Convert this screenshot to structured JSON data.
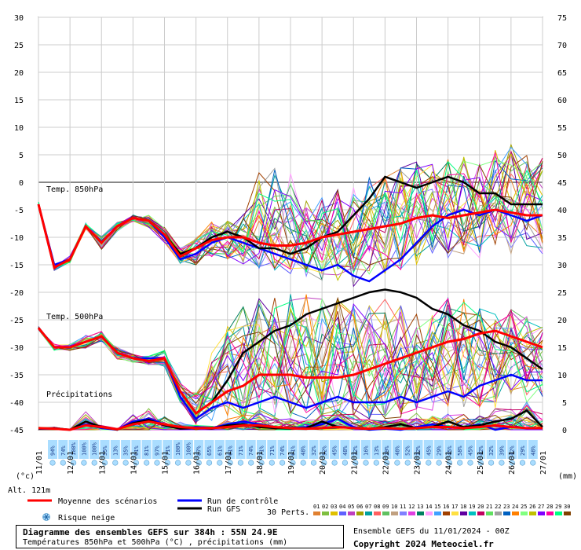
{
  "left_axis_values": [
    "30",
    "25",
    "20",
    "15",
    "10",
    "5",
    "0",
    "-5",
    "-10",
    "-15",
    "-20",
    "-25",
    "-30",
    "-35",
    "-40",
    "-45"
  ],
  "right_axis_values": [
    "75",
    "70",
    "65",
    "60",
    "55",
    "50",
    "45",
    "40",
    "35",
    "30",
    "25",
    "20",
    "15",
    "10",
    "5",
    "0"
  ],
  "date_labels": [
    "11/01",
    "12/01",
    "13/01",
    "14/01",
    "15/01",
    "16/01",
    "17/01",
    "18/01",
    "19/01",
    "20/01",
    "21/01",
    "22/01",
    "23/01",
    "24/01",
    "25/01",
    "26/01",
    "27/01"
  ],
  "unit_left": "(°c)",
  "unit_right": "(mm)",
  "altitude": "Alt. 121m",
  "panel_labels": {
    "t850": "Temp. 850hPa",
    "t500": "Temp. 500hPa",
    "precip": "Précipitations"
  },
  "legend": {
    "mean": "Moyenne des scénarios",
    "control": "Run de contrôle",
    "gfs": "Run GFS",
    "snow": "Risque neige",
    "perts": "30 Perts.",
    "pert_numbers": [
      "01",
      "02",
      "03",
      "04",
      "05",
      "06",
      "07",
      "08",
      "09",
      "10",
      "11",
      "12",
      "13",
      "14",
      "15",
      "16",
      "17",
      "18",
      "19",
      "20",
      "21",
      "22",
      "23",
      "24",
      "25",
      "26",
      "27",
      "28",
      "29",
      "30"
    ]
  },
  "snow_risk_labels": [
    "94%",
    "74%",
    "100%",
    "100%",
    "100%",
    "55%",
    "13%",
    "35%",
    "61%",
    "81%",
    "97%",
    "71%",
    "100%",
    "100%",
    "87%",
    "65%",
    "61%",
    "61%",
    "71%",
    "74%",
    "71%",
    "71%",
    "74%",
    "61%",
    "48%",
    "32%",
    "52%",
    "45%",
    "48%",
    "32%",
    "16%",
    "13%",
    "29%",
    "48%",
    "52%",
    "32%",
    "45%",
    "29%",
    "45%",
    "58%",
    "45%",
    "42%",
    "32%",
    "39%",
    "42%",
    "29%",
    "48%"
  ],
  "title_box": {
    "line1": "Diagramme des ensembles GEFS sur 384h : 55N 24.9E",
    "line2": "Températures 850hPa et 500hPa (°C) , précipitations (mm)"
  },
  "footer": {
    "run": "Ensemble GEFS du 11/01/2024 - 00Z",
    "copyright": "Copyright 2024 Meteociel.fr"
  },
  "colors": {
    "mean": "#ff0000",
    "control": "#0000ff",
    "gfs": "#000000",
    "snow": "#aaddff",
    "pert_palette": [
      "#e08030",
      "#7fbf3f",
      "#e0c000",
      "#6060ff",
      "#bf40bf",
      "#a0a000",
      "#00a0a0",
      "#ff6060",
      "#60c060",
      "#c0a080",
      "#8080ff",
      "#e040e0",
      "#008060",
      "#ffa0ff",
      "#40a0ff",
      "#a04000",
      "#ffe040",
      "#6000a0",
      "#00c0c0",
      "#c00060",
      "#60e060",
      "#a0a0a0",
      "#0060c0",
      "#ff8000",
      "#80ff80",
      "#c0c000",
      "#8000ff",
      "#ff00a0",
      "#00ff80",
      "#804000"
    ]
  },
  "chart_data": [
    {
      "type": "line",
      "name": "Temp. 850hPa",
      "x_unit": "day of January 2024",
      "x": [
        11,
        11.5,
        12,
        12.5,
        13,
        13.5,
        14,
        14.5,
        15,
        15.5,
        16,
        16.5,
        17,
        17.5,
        18,
        18.5,
        19,
        19.5,
        20,
        20.5,
        21,
        21.5,
        22,
        22.5,
        23,
        23.5,
        24,
        24.5,
        25,
        25.5,
        26,
        26.5,
        27
      ],
      "series": [
        {
          "name": "Moyenne des scénarios",
          "values": [
            -4,
            -15.5,
            -14,
            -8,
            -11,
            -8,
            -6.5,
            -7,
            -9.5,
            -13.5,
            -12,
            -10.5,
            -10,
            -10,
            -11,
            -11.5,
            -11.5,
            -11,
            -10,
            -9.5,
            -9,
            -8.5,
            -8,
            -7.5,
            -6.5,
            -6,
            -6.5,
            -6,
            -5.5,
            -5,
            -5.5,
            -6,
            -6
          ]
        },
        {
          "name": "Run de contrôle",
          "values": [
            -4,
            -15,
            -14,
            -8,
            -11,
            -8,
            -6.5,
            -7,
            -10,
            -14,
            -13,
            -11,
            -10,
            -11,
            -12,
            -13,
            -14,
            -15,
            -16,
            -15,
            -17,
            -18,
            -16,
            -14,
            -11,
            -8,
            -6,
            -5,
            -6,
            -5,
            -6,
            -7,
            -6
          ]
        },
        {
          "name": "Run GFS",
          "values": [
            -4,
            -15.5,
            -14,
            -8,
            -11,
            -8,
            -6.5,
            -7,
            -9.5,
            -13,
            -12,
            -10,
            -9,
            -10,
            -12,
            -12,
            -13,
            -12,
            -10,
            -9,
            -6,
            -3,
            1,
            0,
            -1,
            0,
            1,
            0,
            -2,
            -2,
            -4,
            -4,
            -4
          ]
        }
      ],
      "envelope": {
        "min": [
          -4.5,
          -16,
          -15,
          -9,
          -13,
          -9,
          -7.5,
          -9,
          -12,
          -16,
          -15,
          -14,
          -14,
          -15,
          -16,
          -16,
          -17,
          -18,
          -18,
          -18,
          -19,
          -17,
          -17,
          -16,
          -15,
          -14,
          -14,
          -13,
          -14,
          -12,
          -13,
          -12,
          -13
        ],
        "max": [
          -3,
          -14,
          -13,
          -7,
          -9,
          -6,
          -5.5,
          -5,
          -7,
          -11,
          -10,
          -7,
          -7,
          -5,
          2,
          3,
          2,
          -3,
          -2,
          -1,
          0,
          1,
          2,
          3,
          4,
          4,
          5,
          5,
          6,
          6,
          7,
          5,
          5
        ]
      },
      "ylim": [
        -45,
        30
      ]
    },
    {
      "type": "line",
      "name": "Temp. 500hPa",
      "x_unit": "day of January 2024",
      "x": [
        11,
        11.5,
        12,
        12.5,
        13,
        13.5,
        14,
        14.5,
        15,
        15.5,
        16,
        16.5,
        17,
        17.5,
        18,
        18.5,
        19,
        19.5,
        20,
        20.5,
        21,
        21.5,
        22,
        22.5,
        23,
        23.5,
        24,
        24.5,
        25,
        25.5,
        26,
        26.5,
        27
      ],
      "series": [
        {
          "name": "Moyenne des scénarios",
          "values": [
            -26.5,
            -30,
            -30,
            -29,
            -28,
            -31,
            -32,
            -32.5,
            -32,
            -38,
            -42,
            -40,
            -38,
            -37,
            -35,
            -35,
            -35,
            -35.5,
            -35.5,
            -35.5,
            -35,
            -34,
            -33,
            -32,
            -31,
            -30,
            -29,
            -28.5,
            -27.5,
            -27,
            -28,
            -29,
            -30
          ]
        },
        {
          "name": "Run de contrôle",
          "values": [
            -26.5,
            -30,
            -30,
            -29,
            -28,
            -31,
            -32,
            -32,
            -32,
            -39,
            -43,
            -41,
            -40,
            -41,
            -40,
            -39,
            -40,
            -41,
            -40,
            -39,
            -40,
            -40,
            -40,
            -39,
            -40,
            -39,
            -38,
            -39,
            -37,
            -36,
            -35,
            -36,
            -36
          ]
        },
        {
          "name": "Run GFS",
          "values": [
            -26.5,
            -30,
            -30,
            -29,
            -28,
            -31,
            -32,
            -32.5,
            -32,
            -38,
            -42,
            -40,
            -36,
            -31,
            -29,
            -27,
            -26,
            -24,
            -23,
            -22,
            -21,
            -20,
            -19.5,
            -20,
            -21,
            -23,
            -24,
            -26,
            -27,
            -29,
            -30,
            -32,
            -34
          ]
        }
      ],
      "envelope": {
        "min": [
          -27,
          -31,
          -31,
          -31,
          -30,
          -33,
          -33.5,
          -34,
          -35,
          -41,
          -44,
          -44,
          -43,
          -44,
          -43,
          -43,
          -43,
          -43,
          -43,
          -43,
          -43,
          -43,
          -43,
          -43,
          -42,
          -42,
          -42,
          -42,
          -41,
          -41,
          -40,
          -40,
          -39
        ],
        "max": [
          -26,
          -29,
          -29,
          -27,
          -27,
          -29,
          -31,
          -31,
          -30,
          -34,
          -38,
          -30,
          -26,
          -22,
          -21,
          -21,
          -20,
          -20,
          -21,
          -21,
          -21,
          -21,
          -21,
          -22,
          -23,
          -23,
          -21,
          -21,
          -22,
          -22,
          -23,
          -24,
          -26
        ]
      },
      "ylim": [
        -45,
        30
      ]
    },
    {
      "type": "line",
      "name": "Précipitations",
      "y_unit": "mm",
      "x": [
        11,
        11.5,
        12,
        12.5,
        13,
        13.5,
        14,
        14.5,
        15,
        15.5,
        16,
        16.5,
        17,
        17.5,
        18,
        18.5,
        19,
        19.5,
        20,
        20.5,
        21,
        21.5,
        22,
        22.5,
        23,
        23.5,
        24,
        24.5,
        25,
        25.5,
        26,
        26.5,
        27
      ],
      "series": [
        {
          "name": "Moyenne des scénarios",
          "values": [
            0.3,
            0.2,
            0,
            0.8,
            0.5,
            0.1,
            1,
            1.5,
            1,
            0.5,
            0.3,
            0.3,
            0.5,
            0.8,
            0.8,
            0.5,
            0.3,
            0.2,
            0.3,
            0.5,
            0.3,
            0.2,
            0.3,
            0.2,
            0.3,
            0.5,
            0.5,
            0.3,
            0.5,
            0.8,
            0.5,
            0.3,
            0.3
          ]
        },
        {
          "name": "Run de contrôle",
          "values": [
            0.2,
            0.2,
            0,
            1,
            0.3,
            0,
            1.5,
            2,
            1,
            0.3,
            0.5,
            0.3,
            1,
            1.5,
            1,
            0.5,
            0.3,
            0.5,
            1,
            2,
            0.5,
            0,
            0.2,
            0,
            0.5,
            1,
            0.5,
            0.3,
            1,
            0,
            0.5,
            0.3,
            0.3
          ]
        },
        {
          "name": "Run GFS",
          "values": [
            0.2,
            0.3,
            0,
            1.5,
            0.5,
            0,
            1.2,
            1.8,
            0.8,
            0.2,
            0.3,
            0.2,
            0.8,
            1,
            0.5,
            0.3,
            0.2,
            0.3,
            1.5,
            0.5,
            0.3,
            0.1,
            0.5,
            1,
            0.3,
            0.5,
            1.5,
            0.5,
            0.8,
            1.5,
            2,
            3.5,
            0.5
          ]
        }
      ],
      "envelope": {
        "max": [
          0.5,
          0.5,
          0.1,
          3.5,
          1,
          0.3,
          3,
          4,
          3,
          1.5,
          1,
          1,
          2,
          3,
          4,
          3,
          2,
          2,
          3,
          4,
          3,
          2,
          2,
          2,
          3,
          3,
          3,
          3,
          4,
          4,
          4,
          5,
          3
        ]
      },
      "ylim": [
        0,
        75
      ]
    }
  ]
}
